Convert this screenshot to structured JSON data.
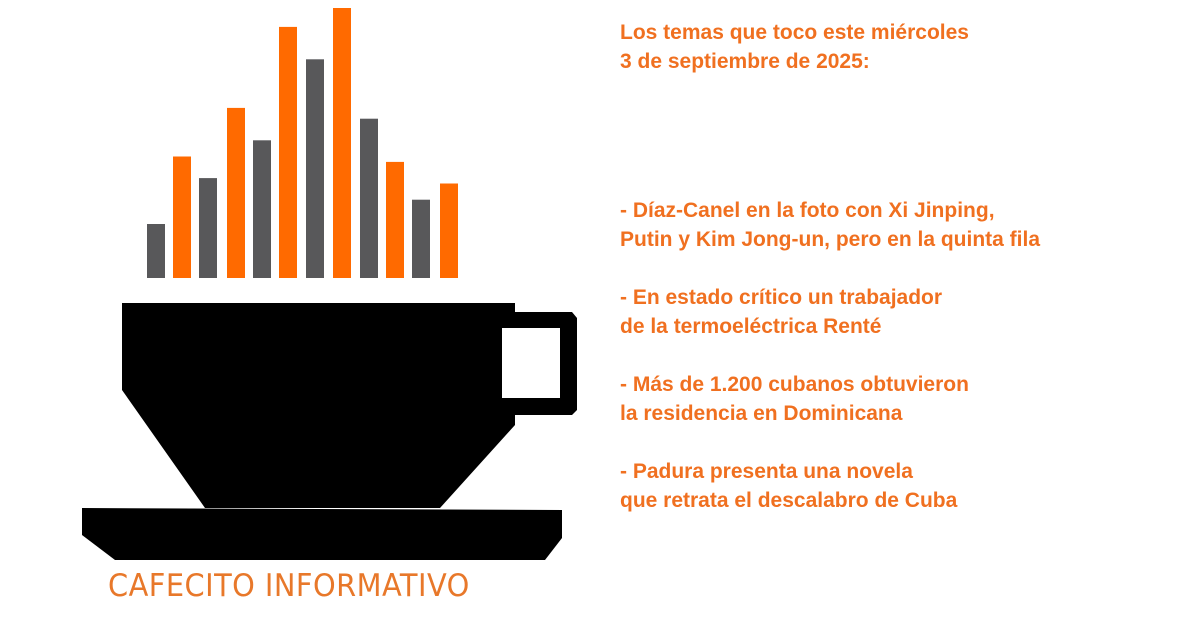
{
  "logo": {
    "brand_name": "CAFECITO INFORMATIVO",
    "colors": {
      "orange": "#ff6a00",
      "gray": "#58585a",
      "cup": "#000000",
      "brand_text": "#e8782a"
    },
    "bar_levels": [
      0.2,
      0.45,
      0.37,
      0.63,
      0.51,
      0.93,
      0.81,
      1.0,
      0.59,
      0.43,
      0.29,
      0.35
    ]
  },
  "topics": {
    "heading": "Los temas que toco este miércoles\n3 de septiembre de 2025:",
    "items": [
      "- Díaz-Canel en la foto con Xi Jinping,\nPutin y Kim Jong-un, pero en la quinta fila",
      "- En estado crítico un trabajador\nde la termoeléctrica Renté",
      "- Más de 1.200 cubanos obtuvieron\nla residencia en Dominicana",
      "- Padura presenta una novela\nque retrata el descalabro de Cuba"
    ],
    "color": "#f07020"
  }
}
